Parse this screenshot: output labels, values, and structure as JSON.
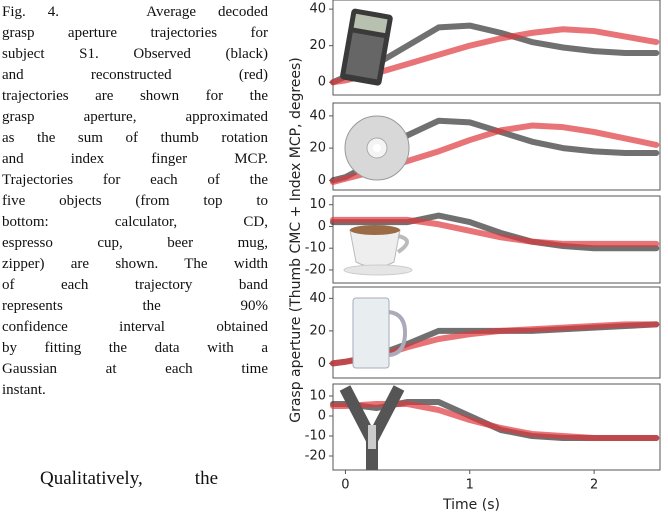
{
  "caption": {
    "lines": [
      "Fig. 4.    Average decoded",
      "grasp aperture trajectories for",
      "subject S1. Observed (black)",
      "and reconstructed (red)",
      "trajectories are shown for the",
      "grasp aperture, approximated",
      "as the sum of thumb rotation",
      "and index finger MCP.",
      "Trajectories for each of the",
      "five objects (from top to",
      "bottom: calculator, CD,",
      "espresso cup, beer mug,",
      "zipper) are shown. The width",
      "of each trajectory band",
      "represents the 90%",
      "confidence interval obtained",
      "by fitting the data with a",
      "Gaussian at each time",
      "instant."
    ]
  },
  "body": {
    "text": "Qualitatively, the"
  },
  "figure": {
    "ylabel": "Grasp aperture (Thumb CMC + Index MCP, degrees)"
  },
  "chart_data": [
    {
      "type": "line",
      "xlim": [
        -0.1,
        2.53
      ],
      "ylim": [
        -7,
        45
      ],
      "yticks": [
        0,
        20,
        40
      ],
      "x": [
        -0.1,
        0,
        0.25,
        0.5,
        0.75,
        1,
        1.25,
        1.5,
        1.75,
        2,
        2.25,
        2.5
      ],
      "series": [
        {
          "color": "#333333",
          "values": [
            0,
            3,
            10,
            20,
            30,
            31,
            27,
            22,
            19,
            17,
            16,
            16
          ]
        },
        {
          "color": "#e0393e",
          "values": [
            0,
            1,
            5,
            10,
            15,
            20,
            24,
            27,
            29,
            28,
            25,
            22
          ]
        }
      ]
    },
    {
      "type": "line",
      "xlim": [
        -0.1,
        2.53
      ],
      "ylim": [
        -6,
        48
      ],
      "yticks": [
        0,
        20,
        40
      ],
      "x": [
        -0.1,
        0,
        0.25,
        0.5,
        0.75,
        1,
        1.25,
        1.5,
        1.75,
        2,
        2.25,
        2.5
      ],
      "series": [
        {
          "color": "#333333",
          "values": [
            0,
            2,
            12,
            28,
            37,
            36,
            30,
            24,
            20,
            18,
            17,
            17
          ]
        },
        {
          "color": "#e0393e",
          "values": [
            -1,
            1,
            6,
            12,
            18,
            25,
            31,
            34,
            33,
            30,
            26,
            22
          ]
        }
      ]
    },
    {
      "type": "line",
      "xlim": [
        -0.1,
        2.53
      ],
      "ylim": [
        -26,
        14
      ],
      "yticks": [
        10,
        0,
        -10,
        -20
      ],
      "x": [
        -0.1,
        0,
        0.25,
        0.5,
        0.75,
        1,
        1.25,
        1.5,
        1.75,
        2,
        2.25,
        2.5
      ],
      "series": [
        {
          "color": "#333333",
          "values": [
            2,
            2,
            2,
            2,
            5,
            2,
            -3,
            -7,
            -9,
            -10,
            -10,
            -10
          ]
        },
        {
          "color": "#e0393e",
          "values": [
            3,
            3,
            3,
            3,
            1,
            -2,
            -5,
            -7,
            -8,
            -8,
            -8,
            -8
          ]
        }
      ]
    },
    {
      "type": "line",
      "xlim": [
        -0.1,
        2.53
      ],
      "ylim": [
        -9,
        47
      ],
      "yticks": [
        0,
        20,
        40
      ],
      "x": [
        -0.1,
        0,
        0.25,
        0.5,
        0.75,
        1,
        1.25,
        1.5,
        1.75,
        2,
        2.25,
        2.5
      ],
      "series": [
        {
          "color": "#333333",
          "values": [
            0,
            1,
            5,
            12,
            20,
            20,
            20,
            20,
            21,
            22,
            23,
            24
          ]
        },
        {
          "color": "#e0393e",
          "values": [
            0,
            1,
            4,
            10,
            15,
            18,
            20,
            21,
            22,
            23,
            24,
            24
          ]
        }
      ]
    },
    {
      "type": "line",
      "xlim": [
        -0.1,
        2.53
      ],
      "ylim": [
        -27,
        16
      ],
      "yticks": [
        10,
        0,
        -10,
        -20
      ],
      "xticks": [
        0,
        1,
        2
      ],
      "xlabel": "Time (s)",
      "x": [
        -0.1,
        0,
        0.25,
        0.5,
        0.75,
        1,
        1.25,
        1.5,
        1.75,
        2,
        2.25,
        2.5
      ],
      "series": [
        {
          "color": "#333333",
          "values": [
            6,
            6,
            4,
            7,
            7,
            0,
            -7,
            -10,
            -11,
            -11,
            -11,
            -11
          ]
        },
        {
          "color": "#e0393e",
          "values": [
            5,
            5,
            6,
            6,
            3,
            -2,
            -6,
            -9,
            -10,
            -11,
            -11,
            -11
          ]
        }
      ]
    }
  ]
}
